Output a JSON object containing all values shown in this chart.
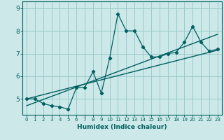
{
  "xlabel": "Humidex (Indice chaleur)",
  "bg_color": "#cce8e8",
  "grid_color": "#99cccc",
  "line_color": "#005f5f",
  "xlim": [
    -0.5,
    23.5
  ],
  "ylim": [
    4.3,
    9.3
  ],
  "yticks": [
    5,
    6,
    7,
    8,
    9
  ],
  "xticks": [
    0,
    1,
    2,
    3,
    4,
    5,
    6,
    7,
    8,
    9,
    10,
    11,
    12,
    13,
    14,
    15,
    16,
    17,
    18,
    19,
    20,
    21,
    22,
    23
  ],
  "data_x": [
    0,
    1,
    2,
    3,
    4,
    5,
    6,
    7,
    8,
    9,
    10,
    11,
    12,
    13,
    14,
    15,
    16,
    17,
    18,
    19,
    20,
    21,
    22,
    23
  ],
  "data_y": [
    5.0,
    5.0,
    4.8,
    4.7,
    4.65,
    4.55,
    5.5,
    5.5,
    6.2,
    5.25,
    6.8,
    8.75,
    8.0,
    8.0,
    7.3,
    6.85,
    6.85,
    7.0,
    7.05,
    7.5,
    8.2,
    7.5,
    7.1,
    7.2
  ],
  "trend1_x": [
    0,
    23
  ],
  "trend1_y": [
    5.0,
    7.15
  ],
  "trend2_x": [
    0,
    23
  ],
  "trend2_y": [
    4.7,
    7.85
  ],
  "xlabel_fontsize": 6.5,
  "ytick_fontsize": 6.5,
  "xtick_fontsize": 5.0
}
